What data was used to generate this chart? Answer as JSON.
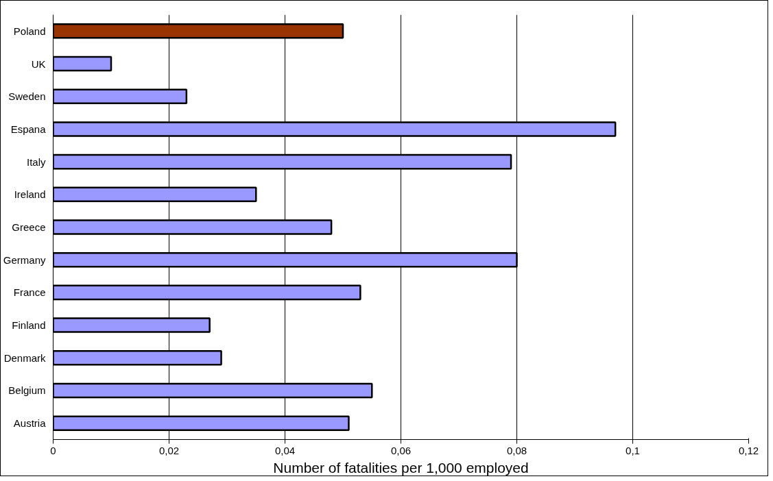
{
  "chart_data": {
    "type": "bar",
    "orientation": "horizontal",
    "xlabel": "Number of fatalities per 1,000 employed",
    "categories": [
      "Poland",
      "UK",
      "Sweden",
      "Espana",
      "Italy",
      "Ireland",
      "Greece",
      "Germany",
      "France",
      "Finland",
      "Denmark",
      "Belgium",
      "Austria"
    ],
    "values": [
      0.05,
      0.01,
      0.023,
      0.097,
      0.079,
      0.035,
      0.048,
      0.08,
      0.053,
      0.027,
      0.029,
      0.055,
      0.051
    ],
    "colors": [
      "#993300",
      "#9999ff",
      "#9999ff",
      "#9999ff",
      "#9999ff",
      "#9999ff",
      "#9999ff",
      "#9999ff",
      "#9999ff",
      "#9999ff",
      "#9999ff",
      "#9999ff",
      "#9999ff"
    ],
    "xlim": [
      0,
      0.12
    ],
    "xticks": [
      0,
      {
        "value": 0.02,
        "label": "0,02"
      },
      {
        "value": 0.04,
        "label": "0,04"
      },
      {
        "value": 0.06,
        "label": "0,06"
      },
      {
        "value": 0.08,
        "label": "0,08"
      },
      {
        "value": 0.1,
        "label": "0,1"
      },
      {
        "value": 0.12,
        "label": "0,12"
      }
    ],
    "grid": "x"
  }
}
